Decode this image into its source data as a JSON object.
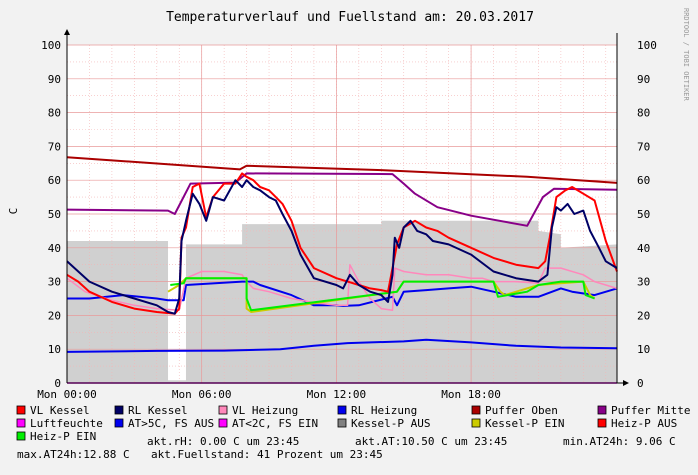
{
  "chart_data": {
    "type": "line",
    "title": "Temperaturverlauf und Fuellstand am: 20.03.2017",
    "ylabel": "C",
    "ylim": [
      0,
      100
    ],
    "yticks": [
      0,
      10,
      20,
      30,
      40,
      50,
      60,
      70,
      80,
      90,
      100
    ],
    "xlim": [
      0,
      24.5
    ],
    "xticks": [
      {
        "x": 0,
        "label": "Mon 00:00"
      },
      {
        "x": 6,
        "label": "Mon 06:00"
      },
      {
        "x": 12,
        "label": "Mon 12:00"
      },
      {
        "x": 18,
        "label": "Mon 18:00"
      }
    ],
    "watermark": "RRDTOOL / TOBI OETIKER",
    "grid": true,
    "area": {
      "name": "Luftfeuchte",
      "color": "#d0d0d0",
      "points": [
        [
          0,
          42
        ],
        [
          4.5,
          42
        ],
        [
          4.5,
          0.8
        ],
        [
          5.3,
          0.8
        ],
        [
          5.3,
          41
        ],
        [
          7.8,
          41
        ],
        [
          7.8,
          47
        ],
        [
          14,
          47
        ],
        [
          14,
          48
        ],
        [
          21,
          48
        ],
        [
          21,
          45
        ],
        [
          22,
          44
        ],
        [
          22,
          40
        ],
        [
          24.5,
          41
        ]
      ]
    },
    "series": [
      {
        "name": "Puffer Oben",
        "color": "#aa0000",
        "width": 2,
        "points": [
          [
            0,
            66.8
          ],
          [
            7.7,
            63.2
          ],
          [
            8,
            64.3
          ],
          [
            14,
            63
          ],
          [
            20.5,
            61
          ],
          [
            24.5,
            59.2
          ]
        ]
      },
      {
        "name": "Puffer Mitte",
        "color": "#880088",
        "width": 2,
        "points": [
          [
            0,
            51.3
          ],
          [
            4.5,
            51
          ],
          [
            4.8,
            50
          ],
          [
            5.5,
            59
          ],
          [
            7.5,
            59.3
          ],
          [
            8,
            62
          ],
          [
            14.5,
            61.8
          ],
          [
            15,
            59
          ],
          [
            15.5,
            56
          ],
          [
            16.5,
            52
          ],
          [
            18,
            49.5
          ],
          [
            20.5,
            46.5
          ],
          [
            21.2,
            55
          ],
          [
            21.7,
            57.5
          ],
          [
            24.5,
            57.2
          ]
        ]
      },
      {
        "name": "Luftfeuchte line",
        "color": "#ff00ff",
        "width": 1.5,
        "points": [
          [
            0,
            0
          ],
          [
            24.5,
            0
          ]
        ]
      },
      {
        "name": "AT>5C line",
        "color": "#0000ee",
        "width": 2,
        "points": [
          [
            0,
            9.2
          ],
          [
            4,
            9.5
          ],
          [
            7,
            9.6
          ],
          [
            9.5,
            10
          ],
          [
            11,
            11
          ],
          [
            12.5,
            11.8
          ],
          [
            15,
            12.3
          ],
          [
            16,
            12.8
          ],
          [
            18,
            12
          ],
          [
            20,
            11
          ],
          [
            22,
            10.5
          ],
          [
            24.5,
            10.3
          ]
        ]
      },
      {
        "name": "RL Heizung",
        "color": "#0000ee",
        "width": 2,
        "points": [
          [
            0,
            25
          ],
          [
            1,
            25
          ],
          [
            2.5,
            26
          ],
          [
            4,
            25
          ],
          [
            4.5,
            24.5
          ],
          [
            5.2,
            24.5
          ],
          [
            5.3,
            29
          ],
          [
            7.8,
            30
          ],
          [
            8.3,
            30
          ],
          [
            8.6,
            29
          ],
          [
            10,
            26
          ],
          [
            11,
            23
          ],
          [
            12,
            23
          ],
          [
            12.3,
            22.8
          ],
          [
            13,
            23
          ],
          [
            14.5,
            25.5
          ],
          [
            14.7,
            23
          ],
          [
            15,
            27
          ],
          [
            16,
            27.5
          ],
          [
            17,
            28
          ],
          [
            18,
            28.5
          ],
          [
            19,
            27
          ],
          [
            20,
            25.5
          ],
          [
            21,
            25.5
          ],
          [
            22,
            28
          ],
          [
            22.5,
            27
          ],
          [
            23.5,
            26
          ],
          [
            24.5,
            28
          ]
        ]
      },
      {
        "name": "VL Heizung",
        "color": "#ff88bb",
        "width": 1.5,
        "points": [
          [
            0,
            31
          ],
          [
            0.8,
            27
          ],
          [
            2,
            24.5
          ],
          [
            3,
            23
          ],
          [
            4,
            22
          ],
          [
            5,
            21.5
          ],
          [
            5.3,
            31
          ],
          [
            6,
            33
          ],
          [
            7,
            33
          ],
          [
            7.8,
            32
          ],
          [
            8,
            30
          ],
          [
            8.3,
            28
          ],
          [
            9,
            27
          ],
          [
            10,
            25
          ],
          [
            11,
            23.8
          ],
          [
            12,
            23
          ],
          [
            12.5,
            23
          ],
          [
            12.6,
            35
          ],
          [
            13,
            30
          ],
          [
            13.5,
            25
          ],
          [
            14,
            22
          ],
          [
            14.5,
            21.5
          ],
          [
            14.6,
            34
          ],
          [
            15,
            33
          ],
          [
            16,
            32
          ],
          [
            17,
            32
          ],
          [
            18,
            31
          ],
          [
            18.5,
            31
          ],
          [
            19,
            30
          ],
          [
            20,
            30
          ],
          [
            21,
            29.5
          ],
          [
            21.3,
            34
          ],
          [
            22,
            34
          ],
          [
            23,
            32
          ],
          [
            23.5,
            30
          ],
          [
            24.5,
            28
          ]
        ]
      },
      {
        "name": "Kessel-P EIN",
        "color": "#cccc00",
        "width": 2,
        "points": [
          [
            4.5,
            27
          ],
          [
            5,
            29
          ],
          [
            5.3,
            31
          ],
          [
            8,
            31
          ],
          [
            8,
            22
          ],
          [
            8.2,
            21
          ],
          [
            14.7,
            27
          ],
          [
            15,
            30
          ],
          [
            19,
            30
          ],
          [
            19.3,
            27
          ],
          [
            19.5,
            26
          ],
          [
            21,
            29
          ],
          [
            22,
            29.5
          ],
          [
            23,
            30
          ],
          [
            23.3,
            26
          ],
          [
            23.5,
            25
          ]
        ]
      },
      {
        "name": "Heiz-P EIN",
        "color": "#00ee00",
        "width": 2,
        "points": [
          [
            4.6,
            29
          ],
          [
            5.2,
            29.5
          ],
          [
            5.3,
            31
          ],
          [
            8,
            31
          ],
          [
            8,
            25
          ],
          [
            8.2,
            21.5
          ],
          [
            14.7,
            27
          ],
          [
            15,
            30
          ],
          [
            19,
            30
          ],
          [
            19.2,
            25.5
          ],
          [
            20.5,
            27
          ],
          [
            21,
            29
          ],
          [
            22,
            30
          ],
          [
            23,
            30
          ],
          [
            23.1,
            26
          ],
          [
            23.5,
            25
          ]
        ]
      },
      {
        "name": "VL Kessel",
        "color": "#ff0000",
        "width": 2,
        "points": [
          [
            0,
            32
          ],
          [
            0.5,
            30
          ],
          [
            1,
            27
          ],
          [
            2,
            24
          ],
          [
            3,
            22
          ],
          [
            4,
            21
          ],
          [
            4.8,
            20.5
          ],
          [
            5,
            22
          ],
          [
            5.1,
            43
          ],
          [
            5.3,
            46
          ],
          [
            5.6,
            58
          ],
          [
            5.9,
            59
          ],
          [
            6.2,
            49
          ],
          [
            6.5,
            55
          ],
          [
            7,
            59
          ],
          [
            7.5,
            59
          ],
          [
            7.8,
            62
          ],
          [
            8,
            61
          ],
          [
            8.3,
            60
          ],
          [
            8.6,
            58
          ],
          [
            9,
            57
          ],
          [
            9.3,
            55
          ],
          [
            9.6,
            53
          ],
          [
            10,
            48
          ],
          [
            10.4,
            40
          ],
          [
            11,
            34
          ],
          [
            12,
            31
          ],
          [
            12.5,
            30
          ],
          [
            13,
            29
          ],
          [
            13.5,
            28
          ],
          [
            14,
            27.5
          ],
          [
            14.3,
            27
          ],
          [
            14.5,
            34
          ],
          [
            14.7,
            41
          ],
          [
            15,
            46
          ],
          [
            15.5,
            48
          ],
          [
            16,
            46
          ],
          [
            16.5,
            45
          ],
          [
            17,
            43
          ],
          [
            18,
            40
          ],
          [
            19,
            37
          ],
          [
            20,
            35
          ],
          [
            21,
            34
          ],
          [
            21.3,
            36
          ],
          [
            21.5,
            43
          ],
          [
            21.8,
            55
          ],
          [
            22.2,
            57
          ],
          [
            22.5,
            58
          ],
          [
            23,
            56
          ],
          [
            23.5,
            54
          ],
          [
            24,
            42
          ],
          [
            24.5,
            33
          ]
        ]
      },
      {
        "name": "RL Kessel",
        "color": "#000066",
        "width": 2,
        "points": [
          [
            0,
            36
          ],
          [
            1,
            30
          ],
          [
            2,
            27
          ],
          [
            3,
            25
          ],
          [
            4,
            23
          ],
          [
            4.5,
            21
          ],
          [
            4.8,
            20.5
          ],
          [
            5,
            25
          ],
          [
            5.1,
            42
          ],
          [
            5.3,
            48
          ],
          [
            5.6,
            56
          ],
          [
            5.9,
            53
          ],
          [
            6.2,
            48
          ],
          [
            6.5,
            55
          ],
          [
            7,
            54
          ],
          [
            7.5,
            60
          ],
          [
            7.8,
            58
          ],
          [
            8,
            60
          ],
          [
            8.3,
            58
          ],
          [
            8.6,
            57
          ],
          [
            9,
            55
          ],
          [
            9.3,
            54
          ],
          [
            9.6,
            50
          ],
          [
            10,
            45
          ],
          [
            10.4,
            38
          ],
          [
            11,
            31
          ],
          [
            12,
            29
          ],
          [
            12.3,
            28
          ],
          [
            12.6,
            32
          ],
          [
            13,
            29
          ],
          [
            13.5,
            27
          ],
          [
            14,
            26
          ],
          [
            14.3,
            24
          ],
          [
            14.5,
            32
          ],
          [
            14.6,
            43
          ],
          [
            14.8,
            40
          ],
          [
            15,
            46
          ],
          [
            15.3,
            48
          ],
          [
            15.6,
            45
          ],
          [
            16,
            44
          ],
          [
            16.3,
            42
          ],
          [
            17,
            41
          ],
          [
            18,
            38
          ],
          [
            19,
            33
          ],
          [
            20,
            31
          ],
          [
            21,
            30
          ],
          [
            21.4,
            32
          ],
          [
            21.6,
            46
          ],
          [
            21.8,
            52
          ],
          [
            22,
            51
          ],
          [
            22.3,
            53
          ],
          [
            22.6,
            50
          ],
          [
            23,
            51
          ],
          [
            23.3,
            45
          ],
          [
            23.7,
            40
          ],
          [
            24,
            36
          ],
          [
            24.5,
            34
          ]
        ]
      }
    ],
    "legend": [
      {
        "label": "VL Kessel",
        "color": "#ff0000"
      },
      {
        "label": "RL Kessel",
        "color": "#000066"
      },
      {
        "label": "VL Heizung",
        "color": "#ff88bb"
      },
      {
        "label": "RL Heizung",
        "color": "#0000ee"
      },
      {
        "label": "Puffer Oben",
        "color": "#aa0000"
      },
      {
        "label": "Puffer Mitte",
        "color": "#880088"
      },
      {
        "label": "Luftfeuchte",
        "color": "#ff00ff"
      },
      {
        "label": "AT>5C, FS AUS",
        "color": "#0000ee"
      },
      {
        "label": "AT<2C, FS EIN",
        "color": "#ff00ff"
      },
      {
        "label": "Kessel-P AUS",
        "color": "#808080"
      },
      {
        "label": "Kessel-P EIN",
        "color": "#cccc00"
      },
      {
        "label": "Heiz-P AUS",
        "color": "#ff0000"
      },
      {
        "label": "Heiz-P EIN",
        "color": "#00ee00"
      }
    ],
    "status": [
      "akt.rH: 0.00 C um 23:45",
      "akt.AT:10.50 C um 23:45",
      "min.AT24h: 9.06 C",
      "max.AT24h:12.88 C",
      "akt.Fuellstand:   41 Prozent um 23:45"
    ]
  }
}
